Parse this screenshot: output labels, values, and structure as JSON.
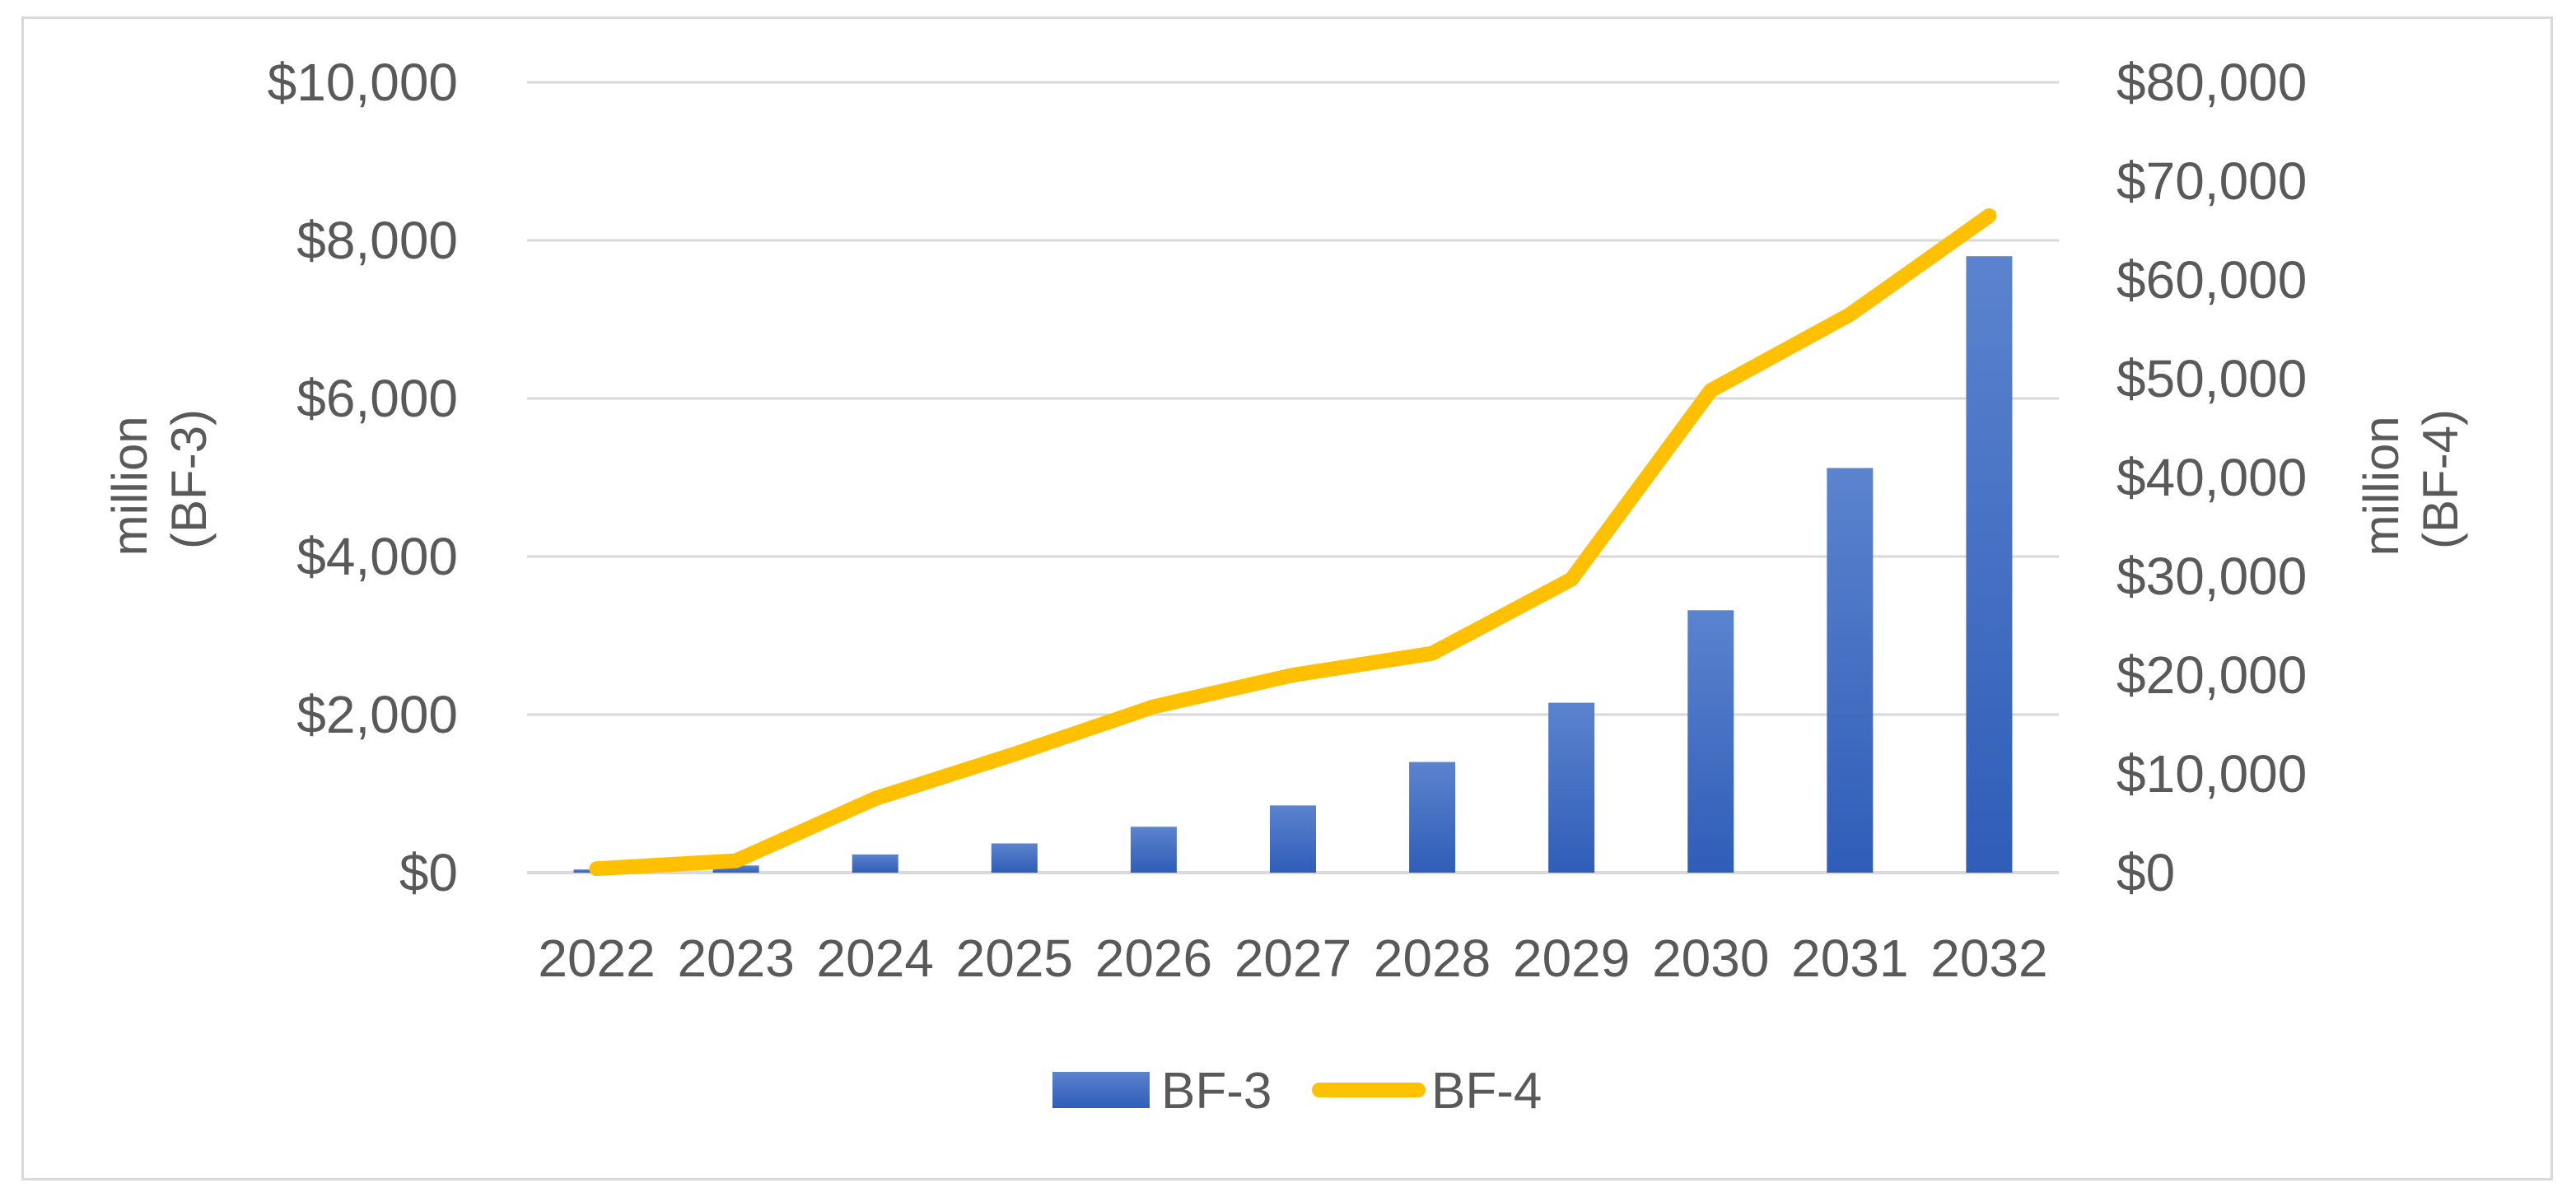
{
  "chart_data": {
    "type": "bar",
    "title": "",
    "categories": [
      "2022",
      "2023",
      "2024",
      "2025",
      "2026",
      "2027",
      "2028",
      "2029",
      "2030",
      "2031",
      "2032"
    ],
    "series": [
      {
        "name": "BF-3",
        "type": "bar",
        "axis": "left",
        "color": "#4472C4",
        "values": [
          40,
          90,
          230,
          370,
          580,
          850,
          1400,
          2150,
          3320,
          5120,
          7800
        ]
      },
      {
        "name": "BF-4",
        "type": "line",
        "axis": "right",
        "color": "#FFC000",
        "values": [
          400,
          1200,
          7500,
          12000,
          16800,
          20000,
          22200,
          29700,
          48800,
          56500,
          66500
        ]
      }
    ],
    "y_left": {
      "label_lines": [
        "million",
        "(BF-3)"
      ],
      "ylim": [
        0,
        10000
      ],
      "ticks": [
        0,
        2000,
        4000,
        6000,
        8000,
        10000
      ],
      "tick_labels": [
        "$0",
        "$2,000",
        "$4,000",
        "$6,000",
        "$8,000",
        "$10,000"
      ]
    },
    "y_right": {
      "label_lines": [
        "million",
        "(BF-4)"
      ],
      "ylim": [
        0,
        80000
      ],
      "ticks": [
        0,
        10000,
        20000,
        30000,
        40000,
        50000,
        60000,
        70000,
        80000
      ],
      "tick_labels": [
        "$0",
        "$10,000",
        "$20,000",
        "$30,000",
        "$40,000",
        "$50,000",
        "$60,000",
        "$70,000",
        "$80,000"
      ]
    },
    "grid": true,
    "legend_position": "bottom"
  }
}
